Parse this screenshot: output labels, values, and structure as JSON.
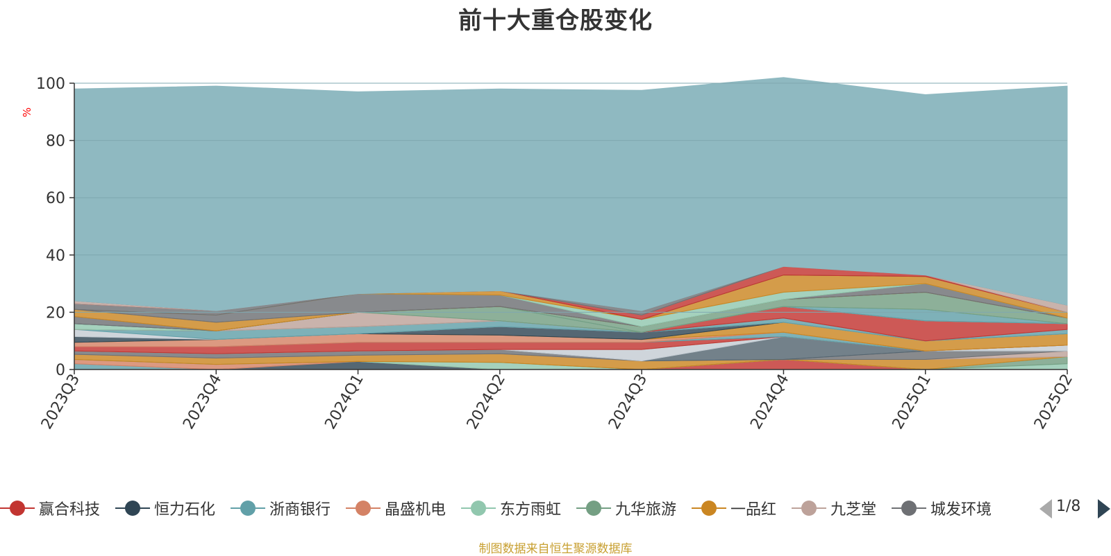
{
  "title": "前十大重仓股变化",
  "source_note": "制图数据来自恒生聚源数据库",
  "legend": {
    "items": [
      {
        "label": "赢合科技",
        "color": "#c23531"
      },
      {
        "label": "恒力石化",
        "color": "#2f4554"
      },
      {
        "label": "浙商银行",
        "color": "#61a0a8"
      },
      {
        "label": "晶盛机电",
        "color": "#d48265"
      },
      {
        "label": "东方雨虹",
        "color": "#91c7ae"
      },
      {
        "label": "九华旅游",
        "color": "#749f83"
      },
      {
        "label": "一品红",
        "color": "#ca8622"
      },
      {
        "label": "九芝堂",
        "color": "#bda29a"
      },
      {
        "label": "城发环境",
        "color": "#6e7074"
      }
    ],
    "page": "1/8"
  },
  "chart_data": {
    "type": "area",
    "stacked": true,
    "title": "前十大重仓股变化",
    "ylabel": "%",
    "ylim": [
      0,
      100
    ],
    "yticks": [
      0,
      20,
      40,
      60,
      80,
      100
    ],
    "grid": true,
    "categories": [
      "2023Q3",
      "2023Q4",
      "2024Q1",
      "2024Q2",
      "2024Q3",
      "2024Q4",
      "2025Q1",
      "2025Q2"
    ],
    "series": [
      {
        "color": "#c23531",
        "values": [
          0,
          0,
          0,
          0,
          0,
          3.5,
          0,
          0
        ]
      },
      {
        "color": "#2f4554",
        "values": [
          0,
          0,
          2.8,
          0,
          0,
          0,
          0,
          0
        ]
      },
      {
        "color": "#61a0a8",
        "values": [
          2.0,
          0,
          0,
          0,
          0,
          0,
          0,
          0
        ]
      },
      {
        "color": "#d48265",
        "values": [
          1.5,
          1.8,
          0,
          0,
          0,
          0,
          0,
          0
        ]
      },
      {
        "color": "#91c7ae",
        "values": [
          0,
          0,
          0,
          2.5,
          0,
          0,
          0,
          2.0
        ]
      },
      {
        "color": "#749f83",
        "values": [
          0,
          0,
          0,
          0,
          0,
          0,
          0,
          2.5
        ]
      },
      {
        "color": "#ca8622",
        "values": [
          1.8,
          2.2,
          2.2,
          3.0,
          3.0,
          0,
          3.5,
          0
        ]
      },
      {
        "color": "#bda29a",
        "values": [
          0,
          0,
          0,
          0,
          0,
          0,
          0,
          2.0
        ]
      },
      {
        "color": "#6e7074",
        "values": [
          1.2,
          1.5,
          1.5,
          1.5,
          0,
          0,
          3.0,
          0
        ]
      },
      {
        "color": "#546570",
        "values": [
          0,
          0,
          0,
          0,
          0,
          8.0,
          0,
          0
        ]
      },
      {
        "color": "#c4ccd3",
        "values": [
          0,
          0,
          0,
          0,
          4.0,
          0,
          0,
          2.0
        ]
      },
      {
        "color": "#91c7ae",
        "values": [
          0,
          0,
          0,
          0,
          0,
          0,
          0,
          0
        ]
      },
      {
        "color": "#c23531",
        "values": [
          1.5,
          2.5,
          3.0,
          2.5,
          2.5,
          0,
          0,
          0
        ]
      },
      {
        "color": "#61a0a8",
        "values": [
          0,
          0,
          0,
          0,
          0,
          1.5,
          0,
          0
        ]
      },
      {
        "color": "#d48265",
        "values": [
          1.5,
          2.5,
          3.0,
          2.5,
          1.0,
          0,
          0,
          0
        ]
      },
      {
        "color": "#ca8622",
        "values": [
          0,
          0,
          0,
          0,
          0,
          3.5,
          3.5,
          4.0
        ]
      },
      {
        "color": "#2f4554",
        "values": [
          2.0,
          0,
          0,
          3.0,
          2.5,
          0,
          0,
          0
        ]
      },
      {
        "color": "#c4ccd3",
        "values": [
          2.5,
          0,
          0,
          0,
          0,
          0,
          0,
          0
        ]
      },
      {
        "color": "#61a0a8",
        "values": [
          0,
          3.0,
          2.5,
          2.0,
          0,
          1.5,
          0,
          1.5
        ]
      },
      {
        "color": "#c23531",
        "values": [
          0,
          0,
          0,
          0,
          0,
          4.0,
          7.0,
          2.0
        ]
      },
      {
        "color": "#91c7ae",
        "values": [
          2.0,
          0,
          0,
          0,
          0,
          0,
          0,
          0
        ]
      },
      {
        "color": "#bda29a",
        "values": [
          0,
          0,
          5.0,
          0,
          0,
          0,
          0,
          0
        ]
      },
      {
        "color": "#749f83",
        "values": [
          0,
          0,
          0,
          5.0,
          0,
          0,
          0,
          0
        ]
      },
      {
        "color": "#61a0a8",
        "values": [
          0,
          0,
          0,
          0,
          0,
          0,
          4.0,
          0
        ]
      },
      {
        "color": "#749f83",
        "values": [
          0,
          0,
          0,
          0,
          2.0,
          2.5,
          6.0,
          2.0
        ]
      },
      {
        "color": "#6e7074",
        "values": [
          2.5,
          0,
          0,
          0,
          0,
          0,
          0,
          0
        ]
      },
      {
        "color": "#ca8622",
        "values": [
          2.5,
          3.0,
          0,
          0,
          0,
          0,
          0,
          0
        ]
      },
      {
        "color": "#6e7074",
        "values": [
          0,
          2.5,
          6.5,
          4.0,
          0,
          0,
          3.0,
          0
        ]
      },
      {
        "color": "#91c7ae",
        "values": [
          0,
          0,
          0,
          0,
          2.5,
          2.5,
          0,
          0
        ]
      },
      {
        "color": "#ca8622",
        "values": [
          0,
          0,
          0,
          1.5,
          0,
          6.0,
          2.5,
          2.0
        ]
      },
      {
        "color": "#6e7074",
        "values": [
          2.0,
          1.5,
          0,
          0,
          0,
          0,
          0,
          0
        ]
      },
      {
        "color": "#c23531",
        "values": [
          0,
          0,
          0,
          0,
          1.5,
          3.0,
          0.5,
          0
        ]
      },
      {
        "color": "#bda29a",
        "values": [
          1.0,
          0,
          0,
          0,
          0,
          0,
          0,
          2.5
        ]
      },
      {
        "color": "#6e7074",
        "values": [
          0,
          0,
          0,
          0,
          1.5,
          0,
          0,
          0
        ]
      },
      {
        "color": "#8fb9c1",
        "values": [
          74.0,
          78.5,
          70.5,
          70.5,
          77.0,
          66.0,
          63.0,
          76.5
        ]
      }
    ]
  }
}
